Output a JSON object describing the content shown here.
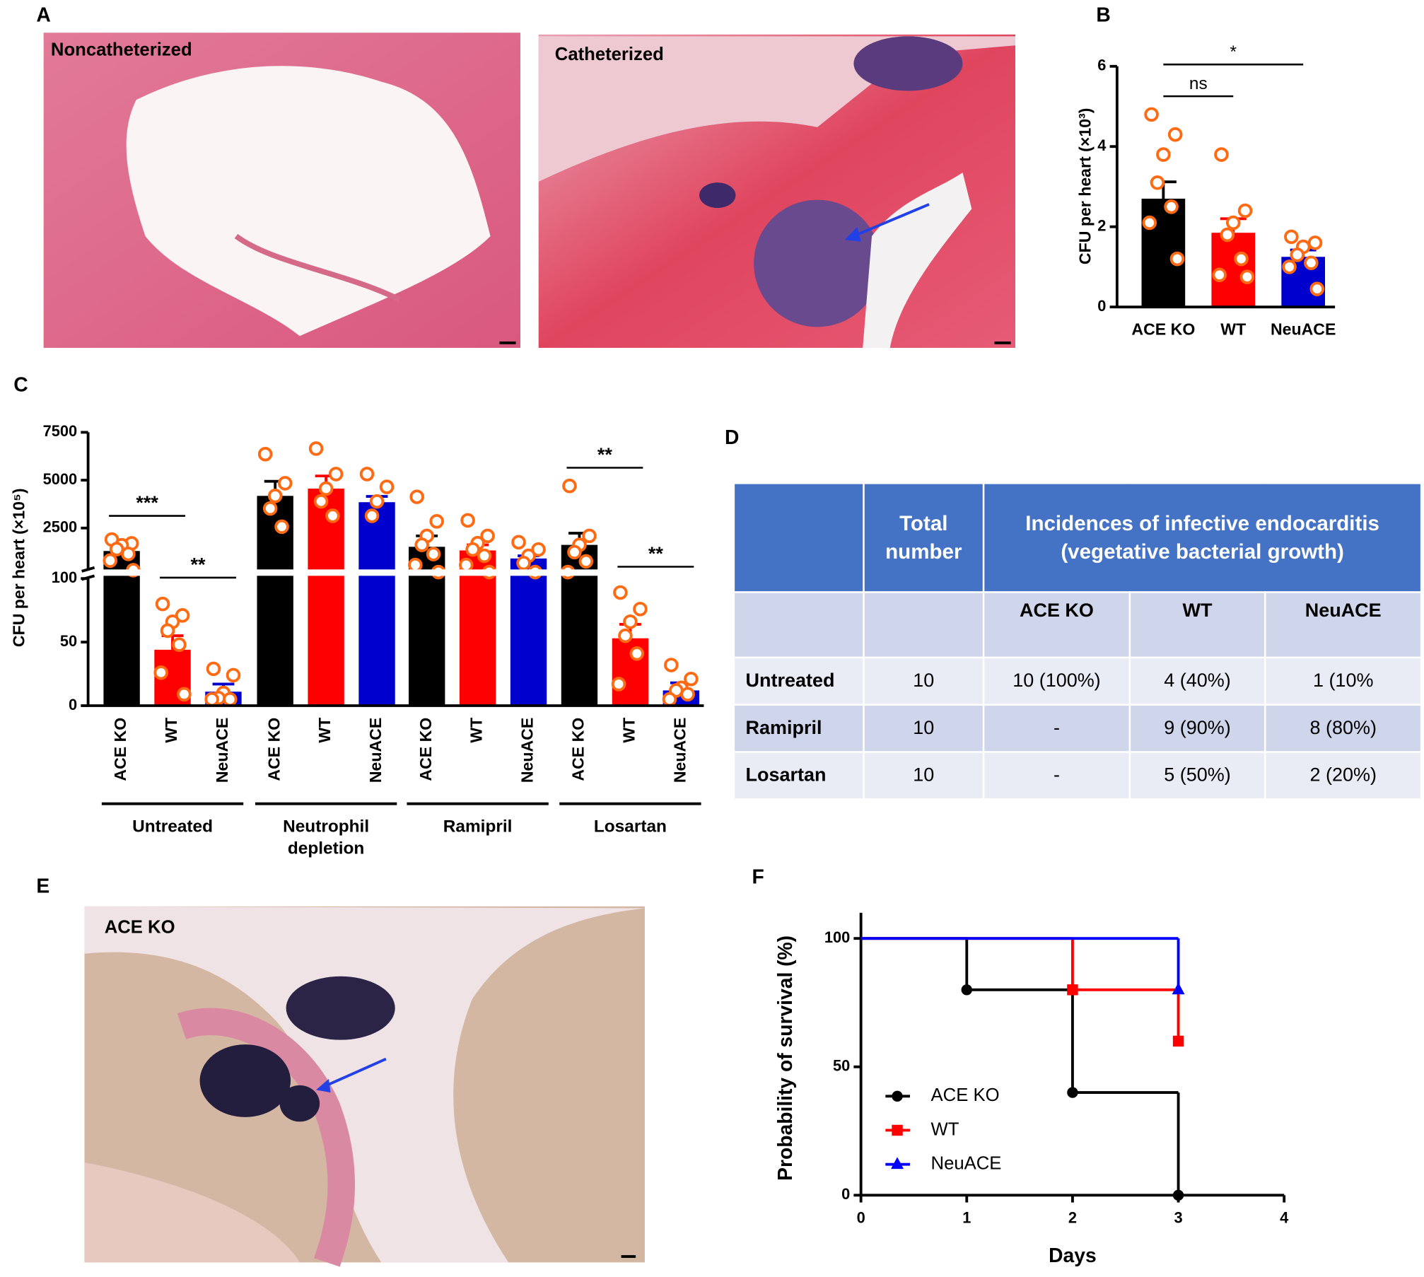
{
  "panel_labels": [
    "A",
    "B",
    "C",
    "D",
    "E",
    "F"
  ],
  "panel_a": {
    "left_caption": "Noncatheterized",
    "right_caption": "Catheterized"
  },
  "panel_e": {
    "caption": "ACE KO"
  },
  "chart_data": [
    {
      "type": "bar",
      "y_label": "CFU per heart (×10³)",
      "categories": [
        "ACE KO",
        "WT",
        "NeuACE"
      ],
      "values": [
        2.7,
        1.85,
        1.25
      ],
      "errors": [
        0.42,
        0.35,
        0.17
      ],
      "points": [
        [
          4.8,
          4.3,
          3.8,
          3.1,
          2.5,
          2.1,
          1.2
        ],
        [
          3.8,
          2.4,
          2.1,
          1.8,
          1.2,
          0.8,
          0.75
        ],
        [
          1.75,
          1.6,
          1.5,
          1.3,
          1.1,
          1.0,
          0.45
        ]
      ],
      "colors": [
        "#000000",
        "#ff0000",
        "#0000cc"
      ],
      "point_color": "#ff6a13",
      "ylim": [
        0,
        6
      ],
      "yticks": [
        0,
        2,
        4,
        6
      ],
      "annotations": [
        "ns",
        "*"
      ]
    },
    {
      "type": "bar",
      "y_label": "CFU per heart (×10⁵)",
      "categories": [
        "ACE KO",
        "WT",
        "NeuACE",
        "ACE KO",
        "WT",
        "NeuACE",
        "ACE KO",
        "WT",
        "NeuACE",
        "ACE KO",
        "WT",
        "NeuACE"
      ],
      "groups": [
        "Untreated",
        "Neutrophil depletion",
        "Ramipril",
        "Losartan"
      ],
      "values": [
        1300,
        44,
        11,
        4180,
        4560,
        3850,
        1520,
        1330,
        910,
        1620,
        53,
        12
      ],
      "errors": [
        250,
        11,
        6,
        760,
        660,
        300,
        570,
        290,
        140,
        610,
        11,
        6
      ],
      "points": [
        [
          1900,
          1700,
          1600,
          1400,
          1150,
          800,
          300
        ],
        [
          80,
          71,
          66,
          59,
          48,
          26,
          9
        ],
        [
          29,
          24,
          10,
          6,
          5,
          5
        ],
        [
          6360,
          4840,
          4180,
          3520,
          2570
        ],
        [
          6650,
          5320,
          4560,
          3890,
          3140
        ],
        [
          5320,
          4650,
          3890,
          3140
        ],
        [
          4130,
          2850,
          2090,
          1620,
          1140,
          570,
          200
        ],
        [
          2900,
          2090,
          1710,
          1380,
          1050,
          570,
          200
        ],
        [
          1760,
          1380,
          1050,
          670,
          200
        ],
        [
          4700,
          2090,
          1620,
          1240,
          760,
          200
        ],
        [
          89,
          76,
          66,
          55,
          41,
          17
        ],
        [
          32,
          21,
          14,
          12,
          9,
          5
        ]
      ],
      "colors": [
        "#000000",
        "#ff0000",
        "#0000cc"
      ],
      "point_color": "#ff6a13",
      "ylim": [
        0,
        7500
      ],
      "axis_break": 100,
      "yticks": [
        0,
        50,
        100,
        2500,
        5000,
        7500
      ],
      "annotations": [
        "***",
        "**",
        "**",
        "**"
      ]
    },
    {
      "type": "line",
      "step": true,
      "x_label": "Days",
      "y_label": "Probability of survival (%)",
      "xlim": [
        0,
        4
      ],
      "xticks": [
        0,
        1,
        2,
        3,
        4
      ],
      "ylim": [
        0,
        110
      ],
      "yticks": [
        0,
        50,
        100
      ],
      "series": [
        {
          "name": "ACE KO",
          "color": "#000000",
          "marker": "circle",
          "x": [
            0,
            1,
            2,
            3
          ],
          "values": [
            100,
            80,
            40,
            0
          ]
        },
        {
          "name": "WT",
          "color": "#ff0000",
          "marker": "square",
          "x": [
            0,
            2,
            3
          ],
          "values": [
            100,
            80,
            60
          ]
        },
        {
          "name": "NeuACE",
          "color": "#0000ff",
          "marker": "triangle",
          "x": [
            0,
            3
          ],
          "values": [
            100,
            80
          ]
        }
      ]
    }
  ],
  "table": {
    "header": {
      "total": "Total number",
      "incidence": "Incidences of infective endocarditis (vegetative bacterial growth)",
      "groups": [
        "ACE KO",
        "WT",
        "NeuACE"
      ]
    },
    "rows": [
      [
        "Untreated",
        "10",
        "10 (100%)",
        "4 (40%)",
        "1 (10%"
      ],
      [
        "Ramipril",
        "10",
        "-",
        "9 (90%)",
        "8 (80%)"
      ],
      [
        "Losartan",
        "10",
        "-",
        "5 (50%)",
        "2 (20%)"
      ]
    ]
  }
}
